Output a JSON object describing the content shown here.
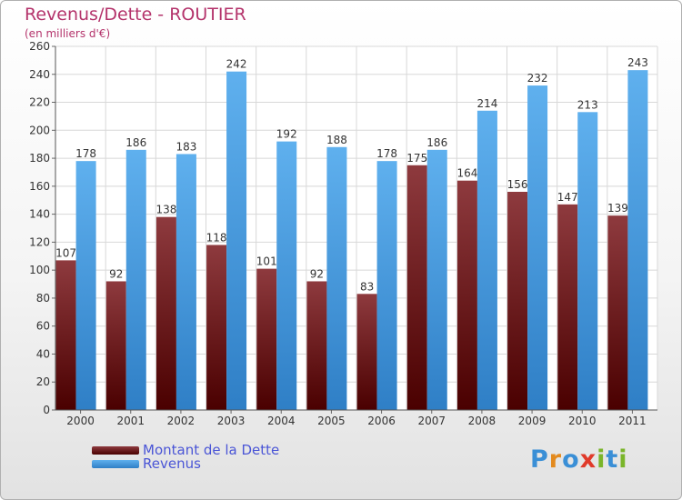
{
  "chart_data": {
    "type": "bar",
    "title": "Revenus/Dette - ROUTIER",
    "subtitle": "(en milliers d'€)",
    "categories": [
      "2000",
      "2001",
      "2002",
      "2003",
      "2004",
      "2005",
      "2006",
      "2007",
      "2008",
      "2009",
      "2010",
      "2011"
    ],
    "series": [
      {
        "name": "Montant de la Dette",
        "values": [
          107,
          92,
          138,
          118,
          101,
          92,
          83,
          175,
          164,
          156,
          147,
          139
        ],
        "color": "#7a0f16"
      },
      {
        "name": "Revenus",
        "values": [
          178,
          186,
          183,
          242,
          192,
          188,
          178,
          186,
          214,
          232,
          213,
          243
        ],
        "color": "#4aa3e6"
      }
    ],
    "ylim": [
      0,
      260
    ],
    "yticks": [
      0,
      20,
      40,
      60,
      80,
      100,
      120,
      140,
      160,
      180,
      200,
      220,
      240,
      260
    ],
    "grid": true,
    "legend": "bottom-left"
  },
  "logo": {
    "text": "Proxiti",
    "colors": [
      "#3a8fd6",
      "#e38a1e",
      "#3a8fd6",
      "#e03a2a",
      "#7ab52a",
      "#3a8fd6",
      "#7ab52a"
    ]
  }
}
